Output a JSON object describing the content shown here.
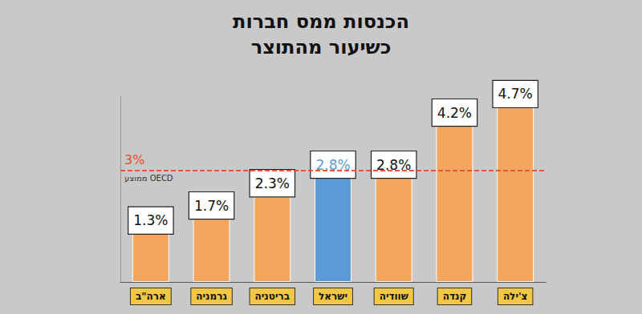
{
  "chart_data": {
    "type": "bar",
    "title": "הכנסות ממס חברות\nכשיעור מהתוצר",
    "categories": [
      "ארה\"ב",
      "גרמניה",
      "בריטניה",
      "ישראל",
      "שוודיה",
      "קנדה",
      "צ'ילה"
    ],
    "values": [
      1.3,
      1.7,
      2.3,
      2.8,
      2.8,
      4.2,
      4.7
    ],
    "value_labels": [
      "1.3%",
      "1.7%",
      "2.3%",
      "2.8%",
      "2.8%",
      "4.2%",
      "4.7%"
    ],
    "colors": [
      "#f4a65e",
      "#f4a65e",
      "#f4a65e",
      "#5b9bd5",
      "#f4a65e",
      "#f4a65e",
      "#f4a65e"
    ],
    "reference_line": {
      "value": 3,
      "label": "3%",
      "text": "ממוצע OECD",
      "color": "#e2502c",
      "line_style": "dashed"
    },
    "ylim": [
      0,
      5
    ],
    "tick_labels": "x",
    "grid": false,
    "data_labels": true
  }
}
